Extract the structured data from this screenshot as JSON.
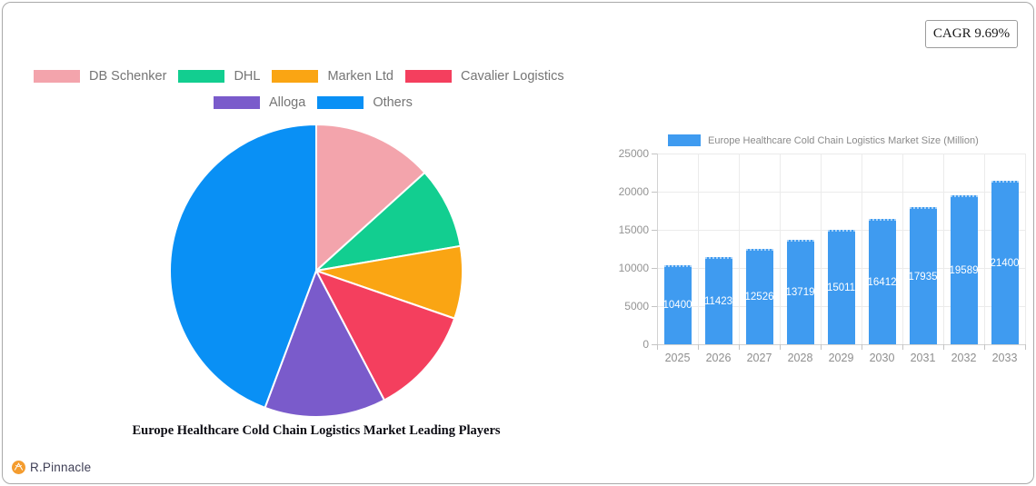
{
  "badge": {
    "label": "CAGR 9.69%"
  },
  "footer": {
    "brand": "R.Pinnacle"
  },
  "chart_data": [
    {
      "type": "pie",
      "title": "Europe Healthcare Cold Chain Logistics Market Leading Players",
      "labels": [
        "DB Schenker",
        "DHL",
        "Marken Ltd",
        "Cavalier Logistics",
        "Alloga",
        "Others"
      ],
      "values": [
        13.3,
        9.0,
        8.0,
        12.0,
        13.4,
        44.3
      ],
      "colors": [
        "#F3A4AC",
        "#12CE90",
        "#FAA513",
        "#F43F5E",
        "#7A5BCB",
        "#0990F5"
      ],
      "start_angle_deg": 0,
      "direction": "clockwise",
      "slice_border_color": "#ffffff",
      "legend_position": "top",
      "legend_row_split": 4
    },
    {
      "type": "bar",
      "legend_label": "Europe Healthcare Cold Chain Logistics Market Size (Million)",
      "categories": [
        "2025",
        "2026",
        "2027",
        "2028",
        "2029",
        "2030",
        "2031",
        "2032",
        "2033"
      ],
      "values": [
        10400,
        11423,
        12526,
        13719,
        15011,
        16412,
        17935,
        19589,
        21400
      ],
      "bar_color": "#3F9BF0",
      "value_label_color": "#ffffff",
      "ylim": [
        0,
        25000
      ],
      "yticks": [
        0,
        5000,
        10000,
        15000,
        20000,
        25000
      ],
      "grid": true,
      "legend_position": "top"
    }
  ]
}
